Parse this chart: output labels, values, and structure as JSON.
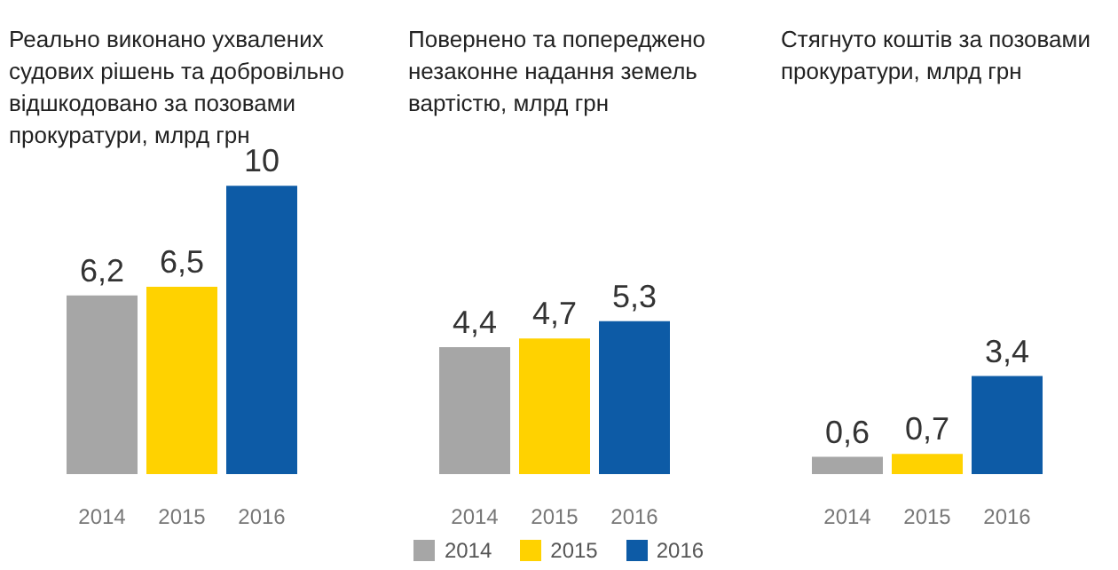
{
  "chart_data": [
    {
      "type": "bar",
      "title": "Реально виконано ухвалених\nсудових рішень та добровільно\nвідшкодовано за позовами\nпрокуратури, млрд грн",
      "categories": [
        "2014",
        "2015",
        "2016"
      ],
      "stacked": true,
      "legend": false,
      "series": [
        {
          "color": "#a6a6a6",
          "values": [
            6.2,
            null,
            null
          ],
          "value_labels": [
            "6,2",
            null,
            null
          ]
        },
        {
          "color": "#ffd200",
          "values": [
            null,
            6.5,
            null
          ],
          "value_labels": [
            null,
            "6,5",
            null
          ]
        },
        {
          "color": "#0d5ba6",
          "values": [
            null,
            null,
            10
          ],
          "value_labels": [
            null,
            null,
            "10"
          ]
        }
      ]
    },
    {
      "type": "bar",
      "title": "Повернено та попереджено\nнезаконне надання земель\nвартістю, млрд грн",
      "categories": [
        "2014",
        "2015",
        "2016"
      ],
      "stacked": true,
      "legend": "bottom",
      "series": [
        {
          "name": "2014",
          "color": "#a6a6a6",
          "values": [
            4.4,
            null,
            null
          ],
          "value_labels": [
            "4,4",
            null,
            null
          ]
        },
        {
          "name": "2015",
          "color": "#ffd200",
          "values": [
            null,
            4.7,
            null
          ],
          "value_labels": [
            null,
            "4,7",
            null
          ]
        },
        {
          "name": "2016",
          "color": "#0d5ba6",
          "values": [
            null,
            null,
            5.3
          ],
          "value_labels": [
            null,
            null,
            "5,3"
          ]
        }
      ]
    },
    {
      "type": "bar",
      "title": "Стягнуто коштів за позовами\nпрокуратури, млрд грн",
      "categories": [
        "2014",
        "2015",
        "2016"
      ],
      "stacked": true,
      "legend": false,
      "series": [
        {
          "color": "#a6a6a6",
          "values": [
            0.6,
            null,
            null
          ],
          "value_labels": [
            "0,6",
            null,
            null
          ]
        },
        {
          "color": "#ffd200",
          "values": [
            null,
            0.7,
            null
          ],
          "value_labels": [
            null,
            "0,7",
            null
          ]
        },
        {
          "color": "#0d5ba6",
          "values": [
            null,
            null,
            3.4
          ],
          "value_labels": [
            null,
            null,
            "3,4"
          ]
        }
      ]
    }
  ]
}
